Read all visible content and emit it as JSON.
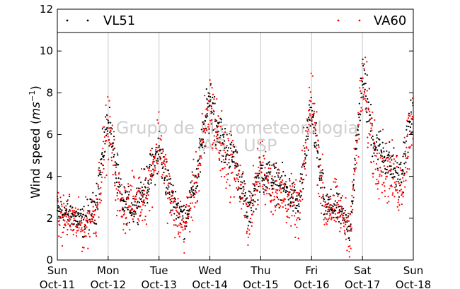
{
  "chart_data": {
    "type": "scatter",
    "ylabel": "Wind speed (ms⁻¹)",
    "ylabel_parts": {
      "text": "Wind speed (",
      "unit": "ms",
      "exp": "−1",
      "close": ")"
    },
    "ylim": [
      0,
      12
    ],
    "yticks": [
      0,
      2,
      4,
      6,
      8,
      10,
      12
    ],
    "xlim": [
      "2015-10-11",
      "2015-10-18"
    ],
    "x_ticks": [
      {
        "day": "Sun",
        "date": "Oct-11"
      },
      {
        "day": "Mon",
        "date": "Oct-12"
      },
      {
        "day": "Tue",
        "date": "Oct-13"
      },
      {
        "day": "Wed",
        "date": "Oct-14"
      },
      {
        "day": "Thu",
        "date": "Oct-15"
      },
      {
        "day": "Fri",
        "date": "Oct-16"
      },
      {
        "day": "Sat",
        "date": "Oct-17"
      },
      {
        "day": "Sun",
        "date": "Oct-18"
      }
    ],
    "grid": "vertical",
    "legend_position": "top",
    "watermark_lines": [
      "Grupo de Micrometeorologia",
      "IAG - USP"
    ],
    "series": [
      {
        "name": "VL51",
        "color": "#000000",
        "daily_mean_profile": [
          {
            "date": "2015-10-11 00:00",
            "y": 2.3
          },
          {
            "date": "2015-10-11 06:00",
            "y": 2.2
          },
          {
            "date": "2015-10-11 12:00",
            "y": 1.8
          },
          {
            "date": "2015-10-11 18:00",
            "y": 2.6
          },
          {
            "date": "2015-10-12 00:00",
            "y": 6.8
          },
          {
            "date": "2015-10-12 06:00",
            "y": 2.8
          },
          {
            "date": "2015-10-12 12:00",
            "y": 2.5
          },
          {
            "date": "2015-10-12 18:00",
            "y": 3.6
          },
          {
            "date": "2015-10-13 00:00",
            "y": 5.2
          },
          {
            "date": "2015-10-13 06:00",
            "y": 3.0
          },
          {
            "date": "2015-10-13 12:00",
            "y": 2.0
          },
          {
            "date": "2015-10-13 18:00",
            "y": 4.0
          },
          {
            "date": "2015-10-14 00:00",
            "y": 7.8
          },
          {
            "date": "2015-10-14 06:00",
            "y": 5.5
          },
          {
            "date": "2015-10-14 12:00",
            "y": 4.8
          },
          {
            "date": "2015-10-14 18:00",
            "y": 2.2
          },
          {
            "date": "2015-10-15 00:00",
            "y": 4.2
          },
          {
            "date": "2015-10-15 06:00",
            "y": 3.8
          },
          {
            "date": "2015-10-15 12:00",
            "y": 3.4
          },
          {
            "date": "2015-10-15 18:00",
            "y": 2.6
          },
          {
            "date": "2015-10-16 00:00",
            "y": 7.2
          },
          {
            "date": "2015-10-16 06:00",
            "y": 2.6
          },
          {
            "date": "2015-10-16 12:00",
            "y": 2.5
          },
          {
            "date": "2015-10-16 18:00",
            "y": 1.5
          },
          {
            "date": "2015-10-17 00:00",
            "y": 8.8
          },
          {
            "date": "2015-10-17 06:00",
            "y": 5.5
          },
          {
            "date": "2015-10-17 12:00",
            "y": 4.8
          },
          {
            "date": "2015-10-17 18:00",
            "y": 3.8
          },
          {
            "date": "2015-10-18 00:00",
            "y": 7.5
          }
        ]
      },
      {
        "name": "VA60",
        "color": "#ff0000",
        "daily_mean_profile": [
          {
            "date": "2015-10-11 00:00",
            "y": 2.0
          },
          {
            "date": "2015-10-11 06:00",
            "y": 2.0
          },
          {
            "date": "2015-10-11 12:00",
            "y": 1.5
          },
          {
            "date": "2015-10-11 18:00",
            "y": 2.3
          },
          {
            "date": "2015-10-12 00:00",
            "y": 6.5
          },
          {
            "date": "2015-10-12 06:00",
            "y": 2.5
          },
          {
            "date": "2015-10-12 12:00",
            "y": 2.8
          },
          {
            "date": "2015-10-12 18:00",
            "y": 3.2
          },
          {
            "date": "2015-10-13 00:00",
            "y": 5.8
          },
          {
            "date": "2015-10-13 06:00",
            "y": 2.5
          },
          {
            "date": "2015-10-13 12:00",
            "y": 1.5
          },
          {
            "date": "2015-10-13 18:00",
            "y": 4.0
          },
          {
            "date": "2015-10-14 00:00",
            "y": 7.5
          },
          {
            "date": "2015-10-14 06:00",
            "y": 5.0
          },
          {
            "date": "2015-10-14 12:00",
            "y": 4.5
          },
          {
            "date": "2015-10-14 18:00",
            "y": 2.0
          },
          {
            "date": "2015-10-15 00:00",
            "y": 4.5
          },
          {
            "date": "2015-10-15 06:00",
            "y": 3.5
          },
          {
            "date": "2015-10-15 12:00",
            "y": 3.0
          },
          {
            "date": "2015-10-15 18:00",
            "y": 2.2
          },
          {
            "date": "2015-10-16 00:00",
            "y": 8.0
          },
          {
            "date": "2015-10-16 06:00",
            "y": 2.4
          },
          {
            "date": "2015-10-16 12:00",
            "y": 2.6
          },
          {
            "date": "2015-10-16 18:00",
            "y": 1.4
          },
          {
            "date": "2015-10-17 00:00",
            "y": 8.5
          },
          {
            "date": "2015-10-17 06:00",
            "y": 5.0
          },
          {
            "date": "2015-10-17 12:00",
            "y": 4.2
          },
          {
            "date": "2015-10-17 18:00",
            "y": 3.5
          },
          {
            "date": "2015-10-18 00:00",
            "y": 7.2
          }
        ]
      }
    ]
  }
}
